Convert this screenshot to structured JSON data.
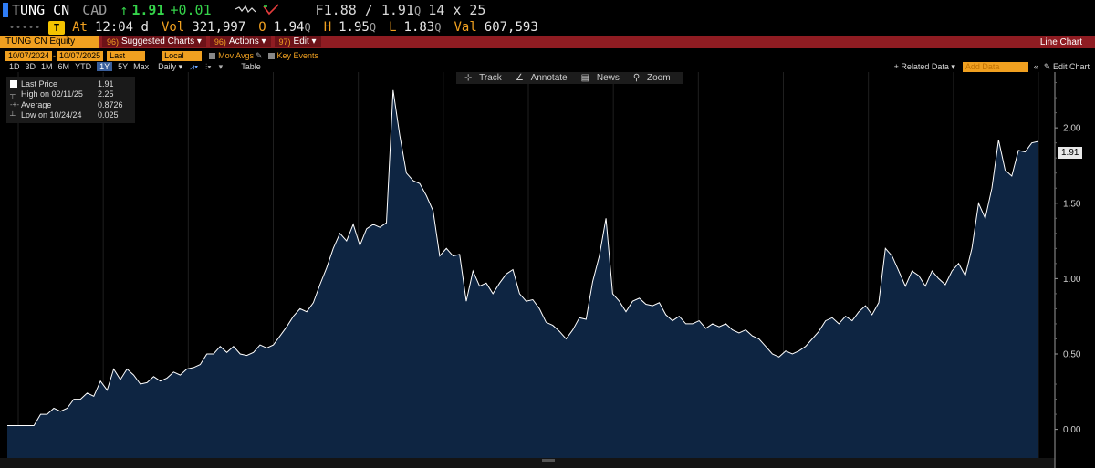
{
  "quote": {
    "ticker": "TUNG CN",
    "currency": "CAD",
    "arrow": "↑",
    "last": "1.91",
    "change": "+0.01",
    "f_label": "F",
    "bid": "1.88",
    "ask": "1.91",
    "ask_source": "Q",
    "size": "14 x 25",
    "time_label": "At",
    "time": "12:04 d",
    "vol_label": "Vol",
    "volume": "321,997",
    "open_label": "O",
    "open": "1.94",
    "open_src": "Q",
    "high_label": "H",
    "high": "1.95",
    "high_src": "Q",
    "low_label": "L",
    "low": "1.83",
    "low_src": "Q",
    "val_label": "Val",
    "value": "607,593",
    "accent": "#35d34a"
  },
  "toolbar": {
    "security": "TUNG CN Equity",
    "suggested_num": "96)",
    "suggested": "Suggested Charts",
    "actions_num": "96)",
    "actions": "Actions",
    "edit_num": "97)",
    "edit": "Edit",
    "title": "Line Chart",
    "color": "#8f1c22"
  },
  "settings": {
    "start_date": "10/07/2024",
    "end_date": "10/07/2025",
    "field": "Last Price",
    "currency": "Local CCY",
    "mov_avgs": "Mov Avgs",
    "key_events": "Key Events"
  },
  "periods": {
    "items": [
      "1D",
      "3D",
      "1M",
      "6M",
      "YTD",
      "1Y",
      "5Y",
      "Max"
    ],
    "active": "1Y",
    "frequency": "Daily",
    "table": "Table",
    "related": "+ Related Data",
    "add_data_placeholder": "Add Data",
    "edit_chart": "Edit Chart"
  },
  "chart_tools": [
    "Track",
    "Annotate",
    "News",
    "Zoom"
  ],
  "legend": [
    {
      "name": "Last Price",
      "value": "1.91"
    },
    {
      "name": "High on 02/11/25",
      "value": "2.25"
    },
    {
      "name": "Average",
      "value": "0.8726"
    },
    {
      "name": "Low on 10/24/24",
      "value": "0.025"
    }
  ],
  "chart_data": {
    "type": "area",
    "series": [
      {
        "values": [
          0.025,
          0.025,
          0.025,
          0.025,
          0.025,
          0.1,
          0.1,
          0.14,
          0.12,
          0.14,
          0.2,
          0.2,
          0.24,
          0.22,
          0.32,
          0.26,
          0.4,
          0.33,
          0.4,
          0.36,
          0.3,
          0.31,
          0.35,
          0.32,
          0.34,
          0.38,
          0.36,
          0.4,
          0.41,
          0.43,
          0.5,
          0.5,
          0.55,
          0.51,
          0.55,
          0.5,
          0.49,
          0.51,
          0.56,
          0.54,
          0.56,
          0.62,
          0.68,
          0.75,
          0.8,
          0.78,
          0.84,
          0.96,
          1.07,
          1.2,
          1.3,
          1.25,
          1.36,
          1.22,
          1.33,
          1.36,
          1.34,
          1.37,
          2.25,
          1.95,
          1.7,
          1.65,
          1.63,
          1.55,
          1.45,
          1.15,
          1.2,
          1.15,
          1.16,
          0.85,
          1.05,
          0.95,
          0.97,
          0.9,
          0.97,
          1.03,
          1.06,
          0.9,
          0.85,
          0.86,
          0.8,
          0.71,
          0.69,
          0.65,
          0.6,
          0.66,
          0.74,
          0.73,
          0.98,
          1.15,
          1.4,
          0.9,
          0.85,
          0.78,
          0.85,
          0.87,
          0.83,
          0.82,
          0.84,
          0.76,
          0.72,
          0.75,
          0.7,
          0.7,
          0.72,
          0.67,
          0.7,
          0.68,
          0.7,
          0.66,
          0.64,
          0.66,
          0.62,
          0.6,
          0.55,
          0.5,
          0.48,
          0.52,
          0.5,
          0.52,
          0.55,
          0.6,
          0.65,
          0.72,
          0.74,
          0.7,
          0.75,
          0.72,
          0.78,
          0.82,
          0.76,
          0.84,
          1.2,
          1.15,
          1.05,
          0.95,
          1.05,
          1.02,
          0.95,
          1.05,
          1.0,
          0.96,
          1.05,
          1.1,
          1.02,
          1.2,
          1.5,
          1.4,
          1.6,
          1.92,
          1.72,
          1.68,
          1.85,
          1.84,
          1.9,
          1.91
        ]
      }
    ],
    "x_ticks": [
      "",
      "",
      "",
      "",
      "",
      "",
      "",
      "",
      "",
      "",
      "",
      "",
      ""
    ],
    "y_ticks": [
      0.0,
      0.5,
      1.0,
      1.5,
      2.0
    ],
    "y_tick_labels": [
      "0.00",
      "0.50",
      "1.00",
      "1.50",
      "2.00"
    ],
    "ylim": [
      -0.19,
      2.37
    ],
    "last_label": "1.91",
    "line_color": "#ffffff",
    "fill_color": "#0e2542",
    "grid": "vertical",
    "legend": "top-left"
  }
}
